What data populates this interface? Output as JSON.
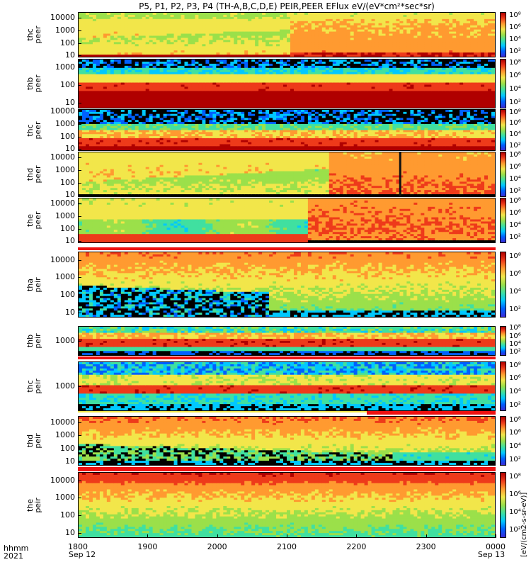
{
  "title": "P5, P1, P2, P3, P4 (TH-A,B,C,D,E) PEIR,PEER EFlux eV/(eV*cm²*sec*sr)",
  "colorbar_title": "[eV/(cm2-s-sr-eV)]",
  "x_axis": {
    "row1_label": "hhmm",
    "row2_label": "2021",
    "ticks": [
      {
        "top": "1800",
        "bottom": "Sep 12"
      },
      {
        "top": "1900",
        "bottom": ""
      },
      {
        "top": "2000",
        "bottom": ""
      },
      {
        "top": "2100",
        "bottom": ""
      },
      {
        "top": "2200",
        "bottom": ""
      },
      {
        "top": "2300",
        "bottom": ""
      },
      {
        "top": "0000",
        "bottom": "Sep 13"
      }
    ]
  },
  "colors": {
    "scale": [
      "#000000",
      "#3b2bd6",
      "#0060ff",
      "#00c8ff",
      "#40e0a0",
      "#9be04a",
      "#f2e64a",
      "#ff9a30",
      "#ee3a1a",
      "#b00000"
    ],
    "bar": "#ee1111"
  },
  "chart_data": {
    "type": "heatmap",
    "time_range": [
      "2021-09-12 18:00",
      "2021-09-13 00:00"
    ],
    "y_scale": "log",
    "panels": [
      {
        "name": "thc\npeer",
        "yticks": [
          "10000",
          "1000",
          "100",
          "10"
        ],
        "ylim": [
          7,
          30000
        ],
        "cticks": [
          "10⁸",
          "10⁶",
          "10⁴",
          "10²"
        ]
      },
      {
        "name": "thb\npeer",
        "yticks": [
          "1000",
          "100",
          "10"
        ],
        "ylim": [
          5,
          3000
        ],
        "cticks": [
          "10⁸",
          "10⁶",
          "10⁴",
          "10²"
        ]
      },
      {
        "name": "thc\npeer",
        "yticks": [
          "10000",
          "1000",
          "100",
          "10"
        ],
        "ylim": [
          7,
          15000
        ],
        "cticks": [
          "10⁸",
          "10⁶",
          "10⁴",
          "10²"
        ]
      },
      {
        "name": "thd\npeer",
        "yticks": [
          "10000",
          "1000",
          "100",
          "10"
        ],
        "ylim": [
          7,
          30000
        ],
        "cticks": [
          "10⁸",
          "10⁶",
          "10⁴",
          "10²"
        ]
      },
      {
        "name": "the\npeer",
        "yticks": [
          "10000",
          "1000",
          "100",
          "10"
        ],
        "ylim": [
          7,
          30000
        ],
        "cticks": [
          "10⁸",
          "10⁶",
          "10⁴",
          "10²"
        ]
      },
      {
        "name": "tha\npeir",
        "yticks": [
          "10000",
          "1000",
          "100",
          "10"
        ],
        "ylim": [
          5,
          30000
        ],
        "cticks": [
          "10⁸",
          "10⁶",
          "10⁴",
          "10²"
        ]
      },
      {
        "name": "thb\npeir",
        "yticks": [
          "1000"
        ],
        "ylim": [
          100,
          10000
        ],
        "cticks": [
          "10⁸",
          "10⁶",
          "10⁴",
          "10²"
        ]
      },
      {
        "name": "thc\npeir",
        "yticks": [
          "1000"
        ],
        "ylim": [
          100,
          10000
        ],
        "cticks": [
          "10⁸",
          "10⁶",
          "10⁴",
          "10²"
        ]
      },
      {
        "name": "thd\npeir",
        "yticks": [
          "10000",
          "1000",
          "100",
          "10"
        ],
        "ylim": [
          5,
          30000
        ],
        "cticks": [
          "10⁸",
          "10⁶",
          "10⁴",
          "10²"
        ]
      },
      {
        "name": "the\npeir",
        "yticks": [
          "10000",
          "1000",
          "100",
          "10"
        ],
        "ylim": [
          5,
          30000
        ],
        "cticks": [
          "10⁸",
          "10⁶",
          "10⁴",
          "10²"
        ]
      }
    ]
  }
}
